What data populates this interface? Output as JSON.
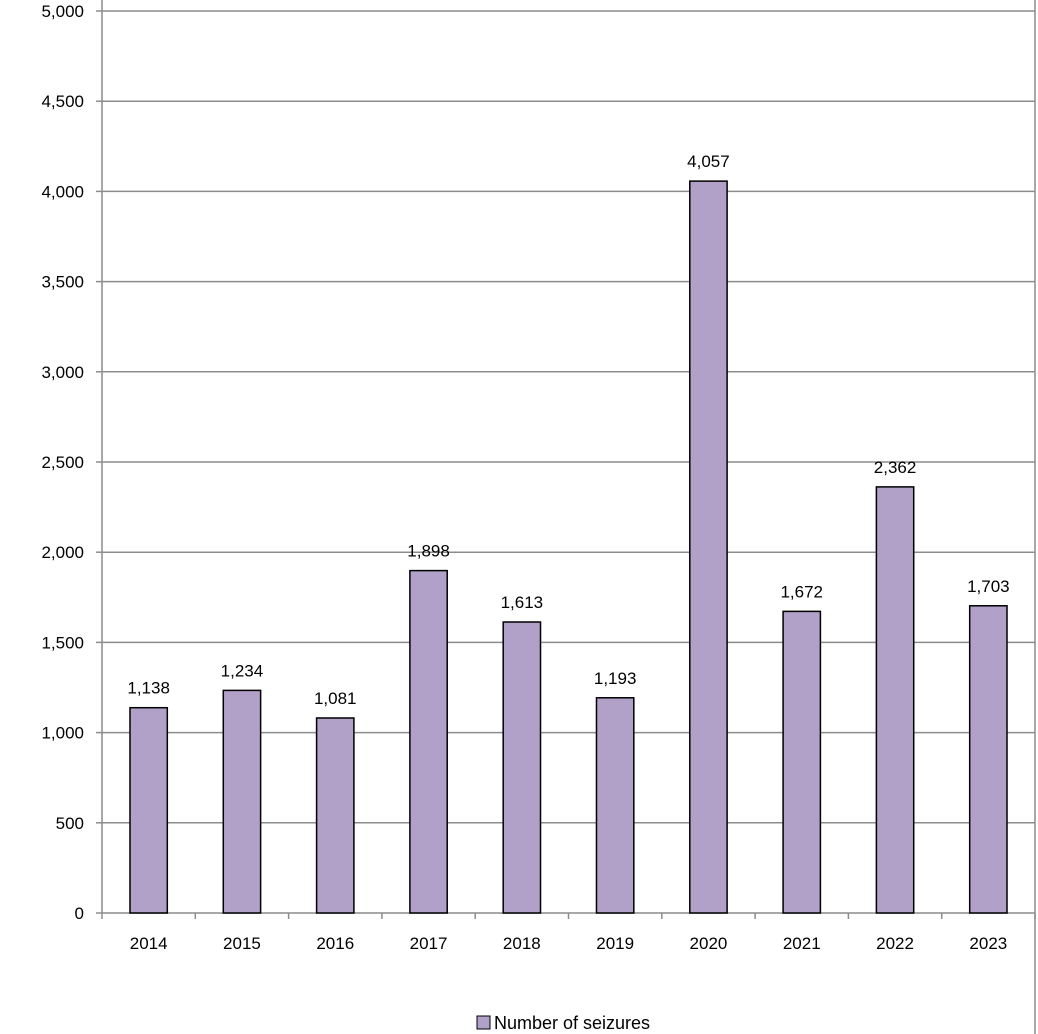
{
  "chart_data": {
    "type": "bar",
    "categories": [
      "2014",
      "2015",
      "2016",
      "2017",
      "2018",
      "2019",
      "2020",
      "2021",
      "2022",
      "2023"
    ],
    "series": [
      {
        "name": "Number of seizures",
        "values": [
          1138,
          1234,
          1081,
          1898,
          1613,
          1193,
          4057,
          1672,
          2362,
          1703
        ],
        "value_labels": [
          "1,138",
          "1,234",
          "1,081",
          "1,898",
          "1,613",
          "1,193",
          "4,057",
          "1,672",
          "2,362",
          "1,703"
        ]
      }
    ],
    "title": "",
    "xlabel": "",
    "ylabel": "",
    "ylim": [
      0,
      5000
    ],
    "yticks": [
      0,
      500,
      1000,
      1500,
      2000,
      2500,
      3000,
      3500,
      4000,
      4500,
      5000
    ],
    "ytick_labels": [
      "0",
      "500",
      "1,000",
      "1,500",
      "2,000",
      "2,500",
      "3,000",
      "3,500",
      "4,000",
      "4,500",
      "5,000"
    ],
    "grid": true,
    "legend_position": "bottom",
    "colors": {
      "bar_fill": "#b1a0c7",
      "bar_stroke": "#000000",
      "gridline": "#8c8c8c",
      "axis": "#8c8c8c"
    }
  }
}
